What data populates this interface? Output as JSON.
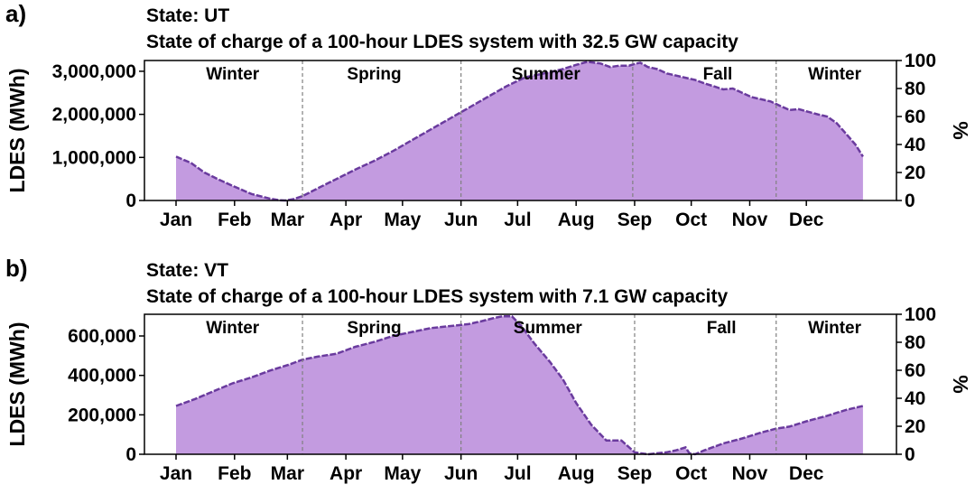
{
  "chart_data": [
    {
      "panel": "a)",
      "type": "area",
      "title": "State: UT",
      "subtitle": "State of charge of a 100-hour LDES system with 32.5 GW capacity",
      "ylabel": "LDES (MWh)",
      "y2label": "%",
      "ylim": [
        0,
        3250000
      ],
      "y2lim": [
        0,
        100
      ],
      "yticks": [
        "0",
        "1,000,000",
        "2,000,000",
        "3,000,000"
      ],
      "ytick_values": [
        0,
        1000000,
        2000000,
        3000000
      ],
      "y2ticks": [
        "0",
        "20",
        "40",
        "60",
        "80",
        "100"
      ],
      "y2tick_values": [
        0,
        20,
        40,
        60,
        80,
        100
      ],
      "xlim": [
        0,
        365
      ],
      "xticks": [
        "Jan",
        "Feb",
        "Mar",
        "Apr",
        "May",
        "Jun",
        "Jul",
        "Aug",
        "Sep",
        "Oct",
        "Nov",
        "Dec"
      ],
      "xtick_days": [
        0,
        31,
        59,
        90,
        120,
        151,
        181,
        212,
        243,
        273,
        304,
        334
      ],
      "season_boundaries": [
        67,
        151,
        242,
        318
      ],
      "season_labels": [
        "Winter",
        "Spring",
        "Summer",
        "Fall",
        "Winter"
      ],
      "season_label_days": [
        30,
        105,
        196,
        287,
        349
      ],
      "fill_color": "#c39be0",
      "line_color": "#6a3b9e",
      "series": [
        {
          "x": [
            0,
            8,
            15,
            22,
            30,
            40,
            50,
            55,
            58,
            62,
            67,
            75,
            85,
            95,
            105,
            115,
            125,
            135,
            145,
            155,
            165,
            175,
            185,
            195,
            205,
            212,
            218,
            225,
            230,
            235,
            240,
            243,
            246,
            250,
            255,
            260,
            265,
            270,
            275,
            280,
            285,
            290,
            295,
            300,
            305,
            310,
            315,
            320,
            325,
            330,
            335,
            340,
            345,
            350,
            355,
            360,
            364
          ],
          "y": [
            1020000,
            870000,
            650000,
            500000,
            340000,
            150000,
            40000,
            5000,
            0,
            30000,
            100000,
            280000,
            500000,
            720000,
            920000,
            1150000,
            1400000,
            1650000,
            1900000,
            2150000,
            2400000,
            2650000,
            2860000,
            2950000,
            3050000,
            3150000,
            3220000,
            3180000,
            3100000,
            3130000,
            3130000,
            3170000,
            3200000,
            3100000,
            3050000,
            2950000,
            2900000,
            2850000,
            2800000,
            2720000,
            2650000,
            2580000,
            2600000,
            2500000,
            2400000,
            2350000,
            2300000,
            2200000,
            2100000,
            2120000,
            2060000,
            2000000,
            1950000,
            1800000,
            1550000,
            1300000,
            1020000
          ]
        }
      ]
    },
    {
      "panel": "b)",
      "type": "area",
      "title": "State: VT",
      "subtitle": "State of charge of a 100-hour LDES system with 7.1 GW capacity",
      "ylabel": "LDES (MWh)",
      "y2label": "%",
      "ylim": [
        0,
        710000
      ],
      "y2lim": [
        0,
        100
      ],
      "yticks": [
        "0",
        "200,000",
        "400,000",
        "600,000"
      ],
      "ytick_values": [
        0,
        200000,
        400000,
        600000
      ],
      "y2ticks": [
        "0",
        "20",
        "40",
        "60",
        "80",
        "100"
      ],
      "y2tick_values": [
        0,
        20,
        40,
        60,
        80,
        100
      ],
      "xlim": [
        0,
        365
      ],
      "xticks": [
        "Jan",
        "Feb",
        "Mar",
        "Apr",
        "May",
        "Jun",
        "Jul",
        "Aug",
        "Sep",
        "Oct",
        "Nov",
        "Dec"
      ],
      "xtick_days": [
        0,
        31,
        59,
        90,
        120,
        151,
        181,
        212,
        243,
        273,
        304,
        334
      ],
      "season_boundaries": [
        67,
        151,
        243,
        318
      ],
      "season_labels": [
        "Winter",
        "Spring",
        "Summer",
        "Fall",
        "Winter"
      ],
      "season_label_days": [
        30,
        105,
        197,
        289,
        349
      ],
      "fill_color": "#c39be0",
      "line_color": "#6a3b9e",
      "series": [
        {
          "x": [
            0,
            10,
            20,
            30,
            40,
            50,
            60,
            67,
            75,
            85,
            95,
            105,
            115,
            125,
            135,
            145,
            155,
            162,
            168,
            173,
            178,
            183,
            190,
            198,
            205,
            212,
            220,
            228,
            236,
            243,
            246,
            250,
            255,
            260,
            265,
            270,
            272,
            275,
            280,
            290,
            300,
            310,
            318,
            325,
            335,
            345,
            355,
            364
          ],
          "y": [
            245000,
            280000,
            320000,
            360000,
            390000,
            425000,
            455000,
            480000,
            495000,
            510000,
            545000,
            570000,
            600000,
            620000,
            640000,
            650000,
            660000,
            675000,
            690000,
            700000,
            700000,
            650000,
            560000,
            470000,
            380000,
            260000,
            150000,
            70000,
            70000,
            10000,
            5000,
            0,
            5000,
            10000,
            20000,
            35000,
            5000,
            0,
            20000,
            55000,
            80000,
            110000,
            130000,
            140000,
            170000,
            195000,
            225000,
            245000
          ]
        }
      ]
    }
  ]
}
